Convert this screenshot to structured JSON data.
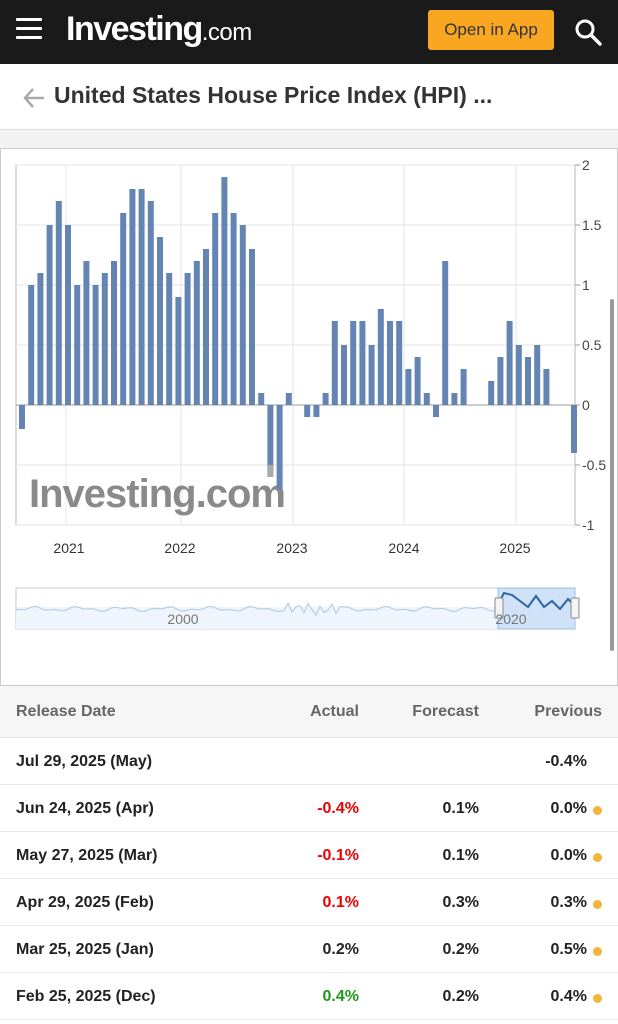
{
  "header": {
    "logo_brand": "Investing",
    "logo_tld": ".com",
    "open_app_label": "Open in App"
  },
  "page": {
    "title": "United States House Price Index (HPI) ..."
  },
  "icons": {
    "menu": "hamburger-menu-icon",
    "search": "search-icon",
    "back": "back-arrow-icon"
  },
  "colors": {
    "bar": "#6485b4",
    "negative_previous_bar": "#a9a9a9",
    "accent_button": "#f9a620",
    "negative_value": "#ee0000",
    "positive_value": "#1a9a1a",
    "revision_dot": "#f2b53a"
  },
  "chart_data": {
    "type": "bar",
    "x_tick_labels": [
      "2021",
      "2022",
      "2023",
      "2024",
      "2025"
    ],
    "y_tick_labels": [
      "2",
      "1.5",
      "1",
      "0.5",
      "0",
      "-0.5",
      "-1"
    ],
    "ylim": [
      -1,
      2
    ],
    "grid": true,
    "watermark": "Investing.com",
    "series": [
      {
        "values": [
          -0.2,
          1.0,
          1.1,
          1.5,
          1.7,
          1.5,
          1.0,
          1.2,
          1.0,
          1.1,
          1.2,
          1.6,
          1.8,
          1.8,
          1.7,
          1.4,
          1.1,
          0.9,
          1.1,
          1.2,
          1.3,
          1.6,
          1.9,
          1.6,
          1.5,
          1.3,
          0.1,
          -0.6,
          -0.7,
          0.1,
          null,
          -0.1,
          -0.1,
          0.1,
          0.7,
          0.5,
          0.7,
          0.7,
          0.5,
          0.8,
          0.7,
          0.7,
          0.3,
          0.4,
          0.1,
          -0.1,
          1.2,
          0.1,
          0.3,
          null,
          null,
          0.2,
          0.4,
          0.7,
          0.5,
          0.4,
          0.5,
          0.3,
          null,
          null,
          -0.4
        ]
      }
    ],
    "navigator": {
      "labels": [
        "2000",
        "2020"
      ]
    }
  },
  "table": {
    "headers": {
      "release_date": "Release Date",
      "actual": "Actual",
      "forecast": "Forecast",
      "previous": "Previous"
    },
    "rows": [
      {
        "date": "Jul 29, 2025 (May)",
        "actual": "",
        "actual_color": "",
        "forecast": "",
        "previous": "-0.4%",
        "revised": false
      },
      {
        "date": "Jun 24, 2025 (Apr)",
        "actual": "-0.4%",
        "actual_color": "red",
        "forecast": "0.1%",
        "previous": "0.0%",
        "revised": true
      },
      {
        "date": "May 27, 2025 (Mar)",
        "actual": "-0.1%",
        "actual_color": "red",
        "forecast": "0.1%",
        "previous": "0.0%",
        "revised": true
      },
      {
        "date": "Apr 29, 2025 (Feb)",
        "actual": "0.1%",
        "actual_color": "red",
        "forecast": "0.3%",
        "previous": "0.3%",
        "revised": true
      },
      {
        "date": "Mar 25, 2025 (Jan)",
        "actual": "0.2%",
        "actual_color": "black",
        "forecast": "0.2%",
        "previous": "0.5%",
        "revised": true
      },
      {
        "date": "Feb 25, 2025 (Dec)",
        "actual": "0.4%",
        "actual_color": "green",
        "forecast": "0.2%",
        "previous": "0.4%",
        "revised": true
      }
    ]
  }
}
